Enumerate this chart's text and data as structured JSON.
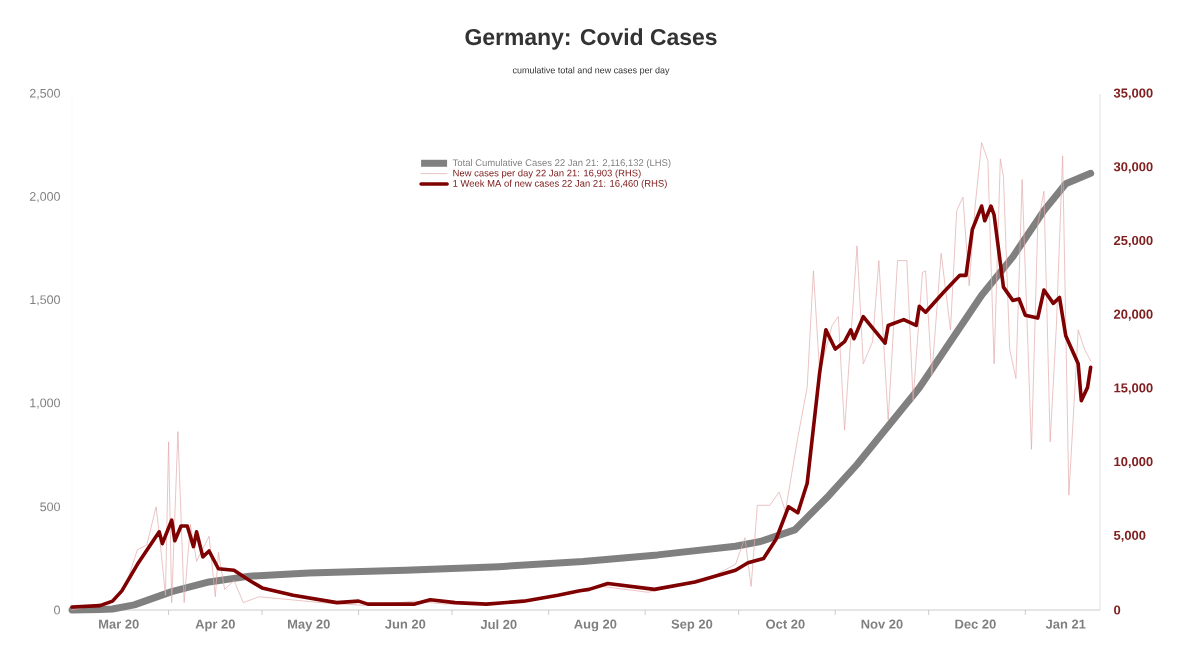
{
  "chart_data": {
    "type": "line",
    "title": "Germany: Covid Cases",
    "subtitle": "cumulative total and new cases per day",
    "xlim": [
      "2020-03-01",
      "2021-01-25"
    ],
    "xticks": [
      {
        "value": "2020-03-16",
        "label": "Mar 20"
      },
      {
        "value": "2020-04-16",
        "label": "Apr 20"
      },
      {
        "value": "2020-05-16",
        "label": "May 20"
      },
      {
        "value": "2020-06-16",
        "label": "Jun 20"
      },
      {
        "value": "2020-07-16",
        "label": "Jul 20"
      },
      {
        "value": "2020-08-16",
        "label": "Aug 20"
      },
      {
        "value": "2020-09-16",
        "label": "Sep 20"
      },
      {
        "value": "2020-10-16",
        "label": "Oct 20"
      },
      {
        "value": "2020-11-16",
        "label": "Nov 20"
      },
      {
        "value": "2020-12-16",
        "label": "Dec 20"
      },
      {
        "value": "2021-01-14",
        "label": "Jan 21"
      },
      {
        "value": "2020-04-01",
        "label": null
      },
      {
        "value": "2020-05-01",
        "label": null
      },
      {
        "value": "2020-06-01",
        "label": null
      },
      {
        "value": "2020-07-01",
        "label": null
      },
      {
        "value": "2020-08-01",
        "label": null
      },
      {
        "value": "2020-09-01",
        "label": null
      },
      {
        "value": "2020-10-01",
        "label": null
      },
      {
        "value": "2020-11-01",
        "label": null
      },
      {
        "value": "2020-12-01",
        "label": null
      },
      {
        "value": "2021-01-01",
        "label": null
      }
    ],
    "ylim": [
      0,
      2500
    ],
    "yticks": [
      {
        "value": 0,
        "label": "0"
      },
      {
        "value": 500,
        "label": "500"
      },
      {
        "value": 1000,
        "label": "1,000"
      },
      {
        "value": 1500,
        "label": "1,500"
      },
      {
        "value": 2000,
        "label": "2,000"
      },
      {
        "value": 2500,
        "label": "2,500"
      }
    ],
    "y2lim": [
      0,
      35000
    ],
    "y2ticks": [
      {
        "value": 0,
        "label": "0"
      },
      {
        "value": 5000,
        "label": "5,000"
      },
      {
        "value": 10000,
        "label": "10,000"
      },
      {
        "value": 15000,
        "label": "15,000"
      },
      {
        "value": 20000,
        "label": "20,000"
      },
      {
        "value": 25000,
        "label": "25,000"
      },
      {
        "value": 30000,
        "label": "30,000"
      },
      {
        "value": 35000,
        "label": "35,000"
      }
    ],
    "legend": "top",
    "grid": false,
    "marker": "none",
    "line_style": "solid",
    "series": [
      {
        "name": "Total Cumulative Cases 22 Jan 21: 2,116,132 (LHS)",
        "color": "#808080",
        "axis": "y",
        "x": [
          "2020-03-01",
          "2020-03-10",
          "2020-03-14",
          "2020-03-21",
          "2020-04-02",
          "2020-04-14",
          "2020-04-27",
          "2020-05-16",
          "2020-06-16",
          "2020-07-16",
          "2020-08-12",
          "2020-09-05",
          "2020-09-30",
          "2020-10-08",
          "2020-10-19",
          "2020-10-30",
          "2020-11-08",
          "2020-11-18",
          "2020-11-28",
          "2020-12-08",
          "2020-12-18",
          "2020-12-28",
          "2021-01-07",
          "2021-01-14",
          "2021-01-22"
        ],
        "values": [
          0,
          2,
          5,
          25,
          89,
          136,
          164,
          179,
          192,
          210,
          235,
          267,
          309,
          332,
          388,
          555,
          705,
          891,
          1077,
          1301,
          1525,
          1711,
          1935,
          2065,
          2116
        ]
      },
      {
        "name": "New cases per day 22 Jan 21: 16,903 (RHS)",
        "color": "#e2aaaa",
        "axis": "y2",
        "x": [
          "2020-03-01",
          "2020-03-14",
          "2020-03-18",
          "2020-03-22",
          "2020-03-25",
          "2020-03-28",
          "2020-03-29",
          "2020-03-31",
          "2020-04-01",
          "2020-04-02",
          "2020-04-04",
          "2020-04-06",
          "2020-04-08",
          "2020-04-10",
          "2020-04-14",
          "2020-04-16",
          "2020-04-17",
          "2020-04-19",
          "2020-04-22",
          "2020-04-25",
          "2020-04-30",
          "2020-05-10",
          "2020-05-20",
          "2020-06-04",
          "2020-06-19",
          "2020-06-29",
          "2020-07-19",
          "2020-08-03",
          "2020-08-18",
          "2020-09-02",
          "2020-09-17",
          "2020-09-22",
          "2020-09-30",
          "2020-10-03",
          "2020-10-05",
          "2020-10-07",
          "2020-10-11",
          "2020-10-14",
          "2020-10-16",
          "2020-10-20",
          "2020-10-23",
          "2020-10-25",
          "2020-10-27",
          "2020-10-31",
          "2020-11-02",
          "2020-11-04",
          "2020-11-08",
          "2020-11-10",
          "2020-11-13",
          "2020-11-15",
          "2020-11-18",
          "2020-11-21",
          "2020-11-24",
          "2020-11-26",
          "2020-11-29",
          "2020-11-30",
          "2020-12-02",
          "2020-12-05",
          "2020-12-08",
          "2020-12-10",
          "2020-12-12",
          "2020-12-14",
          "2020-12-16",
          "2020-12-18",
          "2020-12-20",
          "2020-12-22",
          "2020-12-24",
          "2020-12-25",
          "2020-12-27",
          "2020-12-29",
          "2020-12-31",
          "2021-01-03",
          "2021-01-05",
          "2021-01-07",
          "2021-01-09",
          "2021-01-11",
          "2021-01-13",
          "2021-01-15",
          "2021-01-18",
          "2021-01-20",
          "2021-01-22"
        ],
        "values": [
          0,
          600,
          1500,
          4100,
          4400,
          7000,
          5200,
          1000,
          11400,
          500,
          12100,
          500,
          5800,
          3300,
          5000,
          900,
          3900,
          1400,
          2000,
          500,
          900,
          700,
          500,
          300,
          600,
          400,
          500,
          900,
          1600,
          1200,
          2000,
          2200,
          3100,
          4900,
          1600,
          7100,
          7100,
          8000,
          6700,
          11700,
          15100,
          23000,
          16100,
          19300,
          19900,
          12200,
          24700,
          16700,
          18200,
          23700,
          12900,
          23700,
          23700,
          14200,
          22900,
          23000,
          15900,
          24200,
          19000,
          27100,
          28000,
          22000,
          27600,
          31700,
          30500,
          16700,
          30600,
          29400,
          17700,
          15700,
          29200,
          10900,
          26100,
          28400,
          11400,
          19300,
          30800,
          7800,
          19000,
          17700,
          16903
        ]
      },
      {
        "name": "1 Week MA of new cases 22 Jan 21: 16,460 (RHS)",
        "color": "#7f0000",
        "axis": "y2",
        "x": [
          "2020-03-01",
          "2020-03-10",
          "2020-03-14",
          "2020-03-17",
          "2020-03-22",
          "2020-03-29",
          "2020-03-30",
          "2020-04-02",
          "2020-04-03",
          "2020-04-05",
          "2020-04-07",
          "2020-04-09",
          "2020-04-10",
          "2020-04-12",
          "2020-04-14",
          "2020-04-17",
          "2020-04-22",
          "2020-04-27",
          "2020-05-01",
          "2020-05-11",
          "2020-05-25",
          "2020-06-01",
          "2020-06-04",
          "2020-06-19",
          "2020-06-24",
          "2020-07-02",
          "2020-07-12",
          "2020-07-24",
          "2020-08-04",
          "2020-08-11",
          "2020-08-14",
          "2020-08-20",
          "2020-09-04",
          "2020-09-17",
          "2020-09-22",
          "2020-09-30",
          "2020-10-04",
          "2020-10-09",
          "2020-10-13",
          "2020-10-17",
          "2020-10-20",
          "2020-10-23",
          "2020-10-27",
          "2020-10-29",
          "2020-11-01",
          "2020-11-04",
          "2020-11-06",
          "2020-11-07",
          "2020-11-10",
          "2020-11-17",
          "2020-11-18",
          "2020-11-23",
          "2020-11-27",
          "2020-11-28",
          "2020-11-30",
          "2020-12-06",
          "2020-12-11",
          "2020-12-13",
          "2020-12-15",
          "2020-12-18",
          "2020-12-19",
          "2020-12-21",
          "2020-12-22",
          "2020-12-25",
          "2020-12-28",
          "2020-12-30",
          "2021-01-01",
          "2021-01-05",
          "2021-01-07",
          "2021-01-10",
          "2021-01-12",
          "2021-01-14",
          "2021-01-18",
          "2021-01-19",
          "2021-01-21",
          "2021-01-22"
        ],
        "values": [
          200,
          300,
          600,
          1300,
          3100,
          5300,
          4500,
          6100,
          4700,
          5700,
          5700,
          4300,
          5300,
          3600,
          4000,
          2800,
          2700,
          2000,
          1500,
          1000,
          500,
          600,
          400,
          400,
          700,
          500,
          400,
          600,
          1000,
          1300,
          1400,
          1800,
          1400,
          1900,
          2200,
          2700,
          3200,
          3500,
          4800,
          7000,
          6600,
          8600,
          16100,
          19000,
          17700,
          18200,
          19000,
          18400,
          19900,
          18100,
          19300,
          19700,
          19300,
          20600,
          20200,
          21600,
          22700,
          22700,
          25800,
          27400,
          26400,
          27400,
          26800,
          21900,
          21000,
          21100,
          20000,
          19800,
          21700,
          20800,
          21200,
          18600,
          16700,
          14200,
          15100,
          16460
        ]
      }
    ]
  }
}
